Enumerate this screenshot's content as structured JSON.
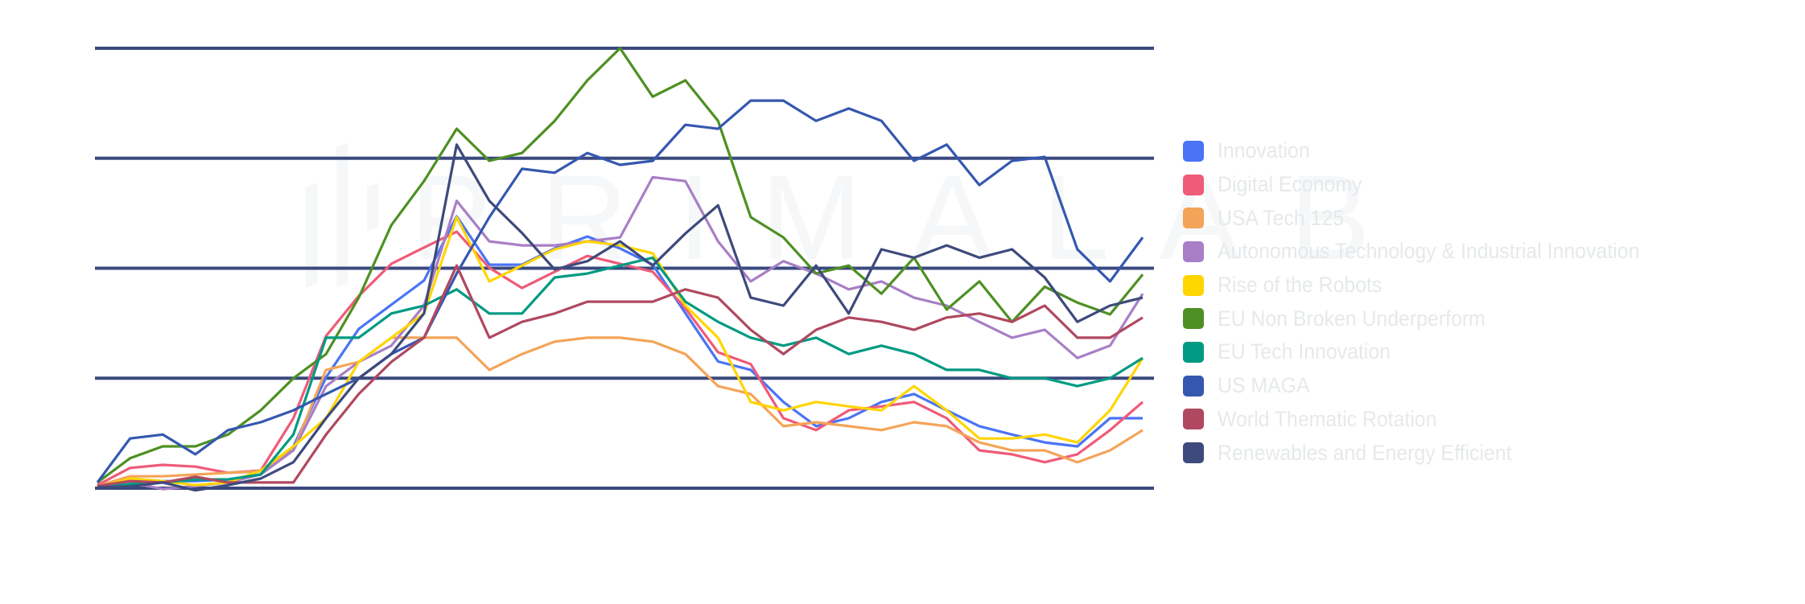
{
  "chart_data": {
    "type": "line",
    "title": "",
    "xlabel": "",
    "ylabel": "",
    "grid": true,
    "gridlines_y": [
      0,
      25,
      50,
      75,
      100
    ],
    "ylim": [
      0,
      100
    ],
    "y_units": "relative (no axis labels shown; gridlines mapped to 0/25/50/75/100)",
    "legend_position": "right",
    "x": [
      0,
      1,
      2,
      3,
      4,
      5,
      6,
      7,
      8,
      9,
      10,
      11,
      12,
      13,
      14,
      15,
      16,
      17,
      18,
      19,
      20,
      21,
      22,
      23,
      24,
      25,
      26,
      27,
      28,
      29,
      30,
      31,
      32
    ],
    "series": [
      {
        "name": "Innovation",
        "color": "#4a74f5",
        "values": [
          0.5,
          2.2,
          1.6,
          1.6,
          2.0,
          3.1,
          9.5,
          25.2,
          36.2,
          41.7,
          47.2,
          61.8,
          50.8,
          50.8,
          54.5,
          57.2,
          54.5,
          50.8,
          39.8,
          28.8,
          26.9,
          19.6,
          14.1,
          15.9,
          19.6,
          21.4,
          17.7,
          14.1,
          12.2,
          10.4,
          9.5,
          15.9,
          15.9
        ]
      },
      {
        "name": "Digital Economy",
        "color": "#ef5b78",
        "values": [
          0.7,
          4.6,
          5.3,
          4.9,
          3.5,
          4.0,
          15.9,
          34.6,
          43.7,
          51.0,
          54.7,
          58.3,
          50.1,
          45.5,
          49.2,
          52.8,
          51.0,
          49.2,
          40.9,
          30.9,
          28.2,
          15.9,
          13.2,
          17.7,
          18.6,
          19.6,
          15.9,
          8.6,
          7.7,
          5.9,
          7.7,
          13.2,
          19.6
        ]
      },
      {
        "name": "USA Tech 125",
        "color": "#f4a458",
        "values": [
          0.5,
          2.7,
          2.7,
          3.1,
          3.5,
          3.8,
          8.6,
          26.9,
          28.7,
          34.2,
          34.2,
          34.2,
          26.9,
          30.5,
          33.3,
          34.2,
          34.2,
          33.3,
          30.5,
          23.2,
          21.4,
          14.1,
          15.0,
          14.1,
          13.2,
          15.0,
          14.1,
          10.4,
          8.6,
          8.6,
          5.9,
          8.6,
          13.2
        ]
      },
      {
        "name": "Autonomous Technology & Industrial Innovation",
        "color": "#a87fc6",
        "values": [
          0.4,
          1.3,
          -0.2,
          0.5,
          1.3,
          3.1,
          8.6,
          23.2,
          28.7,
          32.4,
          41.5,
          65.3,
          56.1,
          55.2,
          55.2,
          56.1,
          57.0,
          70.7,
          69.8,
          56.1,
          47.0,
          51.6,
          48.8,
          45.2,
          47.0,
          43.3,
          41.5,
          37.8,
          34.2,
          36.0,
          29.6,
          32.4,
          44.2
        ]
      },
      {
        "name": "Rise of the Robots",
        "color": "#ffd500",
        "values": [
          0.2,
          2.2,
          1.6,
          0.7,
          1.3,
          4.0,
          9.5,
          15.9,
          28.7,
          34.2,
          39.7,
          61.6,
          47.0,
          50.6,
          54.3,
          56.1,
          55.2,
          53.4,
          41.5,
          34.2,
          19.6,
          17.7,
          19.6,
          18.6,
          17.7,
          23.2,
          17.7,
          11.3,
          11.3,
          12.2,
          10.4,
          17.7,
          29.6
        ]
      },
      {
        "name": "EU Non Broken Underperform",
        "color": "#4e9023",
        "values": [
          1.3,
          6.8,
          9.5,
          9.5,
          12.2,
          17.7,
          25.0,
          30.5,
          43.3,
          59.8,
          69.8,
          81.7,
          74.4,
          76.2,
          83.5,
          92.7,
          100.0,
          89.0,
          92.7,
          83.5,
          61.6,
          57.0,
          48.8,
          50.6,
          44.2,
          52.4,
          40.6,
          47.0,
          37.8,
          45.8,
          42.2,
          39.5,
          48.6
        ]
      },
      {
        "name": "EU Tech Innovation",
        "color": "#009a82",
        "values": [
          0.2,
          0.9,
          1.3,
          2.0,
          2.0,
          3.1,
          12.2,
          34.2,
          34.2,
          39.7,
          41.5,
          45.2,
          39.7,
          39.7,
          47.9,
          48.8,
          50.6,
          52.4,
          42.4,
          37.8,
          34.2,
          32.4,
          34.2,
          30.5,
          32.4,
          30.5,
          26.9,
          26.9,
          25.0,
          25.0,
          23.2,
          25.0,
          29.6
        ]
      },
      {
        "name": "US MAGA",
        "color": "#3557b0",
        "values": [
          1.3,
          11.3,
          12.2,
          7.7,
          13.2,
          15.0,
          17.7,
          21.4,
          25.0,
          30.5,
          34.2,
          48.8,
          61.6,
          72.6,
          71.7,
          76.2,
          73.5,
          74.4,
          82.6,
          81.7,
          88.1,
          88.1,
          83.5,
          86.3,
          83.5,
          74.4,
          78.1,
          68.9,
          74.4,
          75.3,
          54.3,
          47.0,
          57.0
        ]
      },
      {
        "name": "World Thematic Rotation",
        "color": "#b04860",
        "values": [
          0.5,
          1.6,
          1.3,
          2.6,
          1.3,
          1.3,
          1.3,
          12.2,
          21.4,
          28.7,
          34.2,
          50.6,
          34.2,
          37.8,
          39.7,
          42.4,
          42.4,
          42.4,
          45.2,
          43.3,
          36.0,
          30.5,
          36.0,
          38.8,
          37.8,
          36.0,
          38.8,
          39.7,
          37.8,
          41.5,
          34.2,
          34.2,
          38.8
        ]
      },
      {
        "name": "Renewables and Energy Efficient",
        "color": "#3e4a7c",
        "values": [
          0.2,
          0.4,
          1.3,
          -0.5,
          0.7,
          2.2,
          5.9,
          15.9,
          25.0,
          30.5,
          39.7,
          78.1,
          65.3,
          58.0,
          49.7,
          51.6,
          56.1,
          50.6,
          57.9,
          64.3,
          43.3,
          41.5,
          50.6,
          39.7,
          54.3,
          52.4,
          55.2,
          52.4,
          54.3,
          47.9,
          37.8,
          41.5,
          43.3
        ]
      }
    ]
  },
  "legend": {
    "items": [
      {
        "label": "Innovation",
        "color": "#4a74f5"
      },
      {
        "label": "Digital Economy",
        "color": "#ef5b78"
      },
      {
        "label": "USA Tech 125",
        "color": "#f4a458"
      },
      {
        "label": "Autonomous Technology & Industrial Innovation",
        "color": "#a87fc6"
      },
      {
        "label": "Rise of the Robots",
        "color": "#ffd500"
      },
      {
        "label": "EU Non Broken Underperform",
        "color": "#4e9023"
      },
      {
        "label": "EU Tech Innovation",
        "color": "#009a82"
      },
      {
        "label": "US MAGA",
        "color": "#3557b0"
      },
      {
        "label": "World Thematic Rotation",
        "color": "#b04860"
      },
      {
        "label": "Renewables and Energy Efficient",
        "color": "#3e4a7c"
      }
    ]
  },
  "watermark": {
    "text": "PRIMALAB"
  },
  "colors": {
    "gridline": "#3a4a7e",
    "legend_text": "#e6e9eb",
    "background": "#ffffff"
  }
}
